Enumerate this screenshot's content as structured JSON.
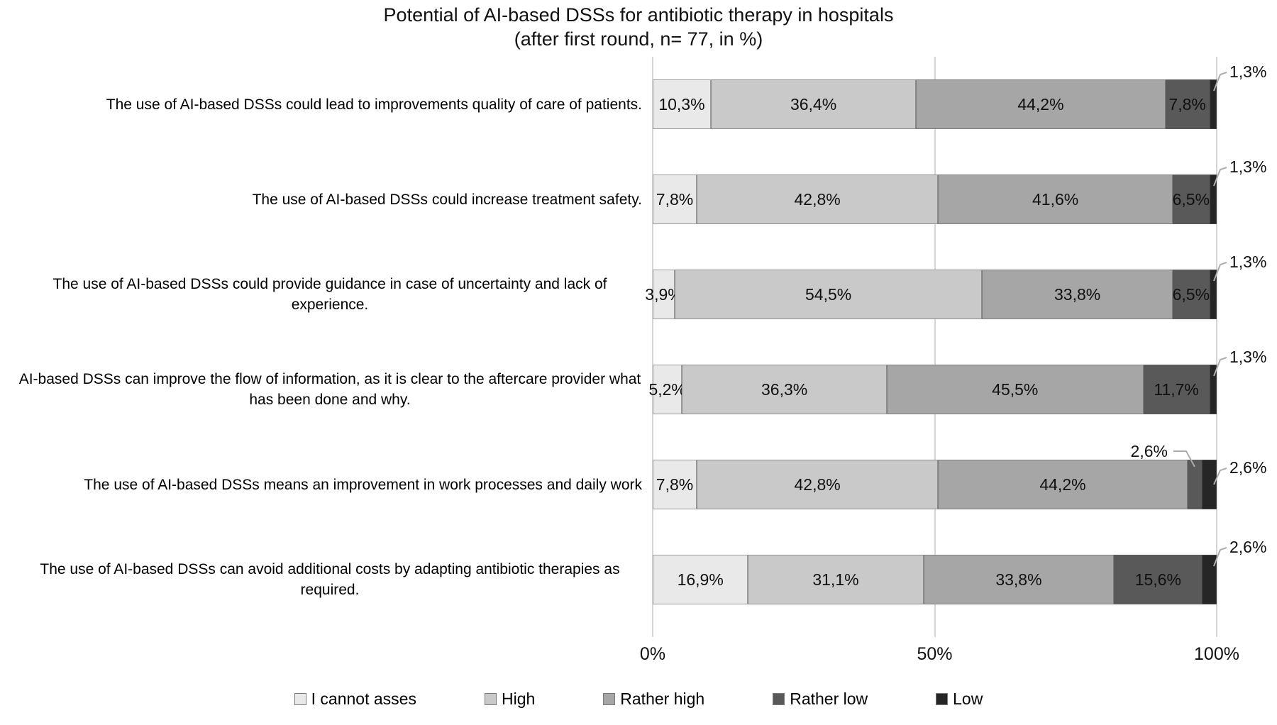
{
  "chart_data": {
    "type": "bar",
    "stacked": true,
    "orientation": "horizontal",
    "title": "Potential of AI-based DSSs for antibiotic therapy in hospitals",
    "subtitle": "(after first round, n= 77, in %)",
    "xlim": [
      0,
      100
    ],
    "x_ticks": [
      "0%",
      "50%",
      "100%"
    ],
    "grid": "vertical gridlines at 0%, 50%, 100%",
    "legend_position": "bottom",
    "categories": [
      "The use of  AI-based DSSs could lead to improvements quality of care of patients.",
      "The use of  AI-based DSSs could increase treatment safety.",
      "The use of  AI-based DSSs could provide guidance in case of uncertainty and lack of experience.",
      "AI-based DSSs can improve the flow of information, as it is clear to the aftercare provider what has been done and why.",
      "The use of AI-based DSSs means an improvement in work processes and daily work",
      "The use of AI-based DSSs can avoid additional costs by adapting antibiotic therapies as required."
    ],
    "series": [
      {
        "name": "I cannot asses",
        "color": "#e9e9e9",
        "values": [
          10.3,
          7.8,
          3.9,
          5.2,
          7.8,
          16.9
        ],
        "labels": [
          "10,3%",
          "7,8%",
          "3,9%",
          "5,2%",
          "7,8%",
          "16,9%"
        ]
      },
      {
        "name": "High",
        "color": "#c9c9c9",
        "values": [
          36.4,
          42.8,
          54.5,
          36.3,
          42.8,
          31.1
        ],
        "labels": [
          "36,4%",
          "42,8%",
          "54,5%",
          "36,3%",
          "42,8%",
          "31,1%"
        ]
      },
      {
        "name": "Rather high",
        "color": "#a6a6a6",
        "values": [
          44.2,
          41.6,
          33.8,
          45.5,
          44.2,
          33.8
        ],
        "labels": [
          "44,2%",
          "41,6%",
          "33,8%",
          "45,5%",
          "44,2%",
          "33,8%"
        ]
      },
      {
        "name": "Rather low",
        "color": "#595959",
        "values": [
          7.8,
          6.5,
          6.5,
          11.7,
          2.6,
          15.6
        ],
        "labels": [
          "7,8%",
          "6,5%",
          "6,5%",
          "11,7%",
          "2,6%",
          "15,6%"
        ]
      },
      {
        "name": "Low",
        "color": "#262626",
        "values": [
          1.3,
          1.3,
          1.3,
          1.3,
          2.6,
          2.6
        ],
        "labels": [
          "1,3%",
          "1,3%",
          "1,3%",
          "1,3%",
          "2,6%",
          "2,6%"
        ]
      }
    ]
  }
}
